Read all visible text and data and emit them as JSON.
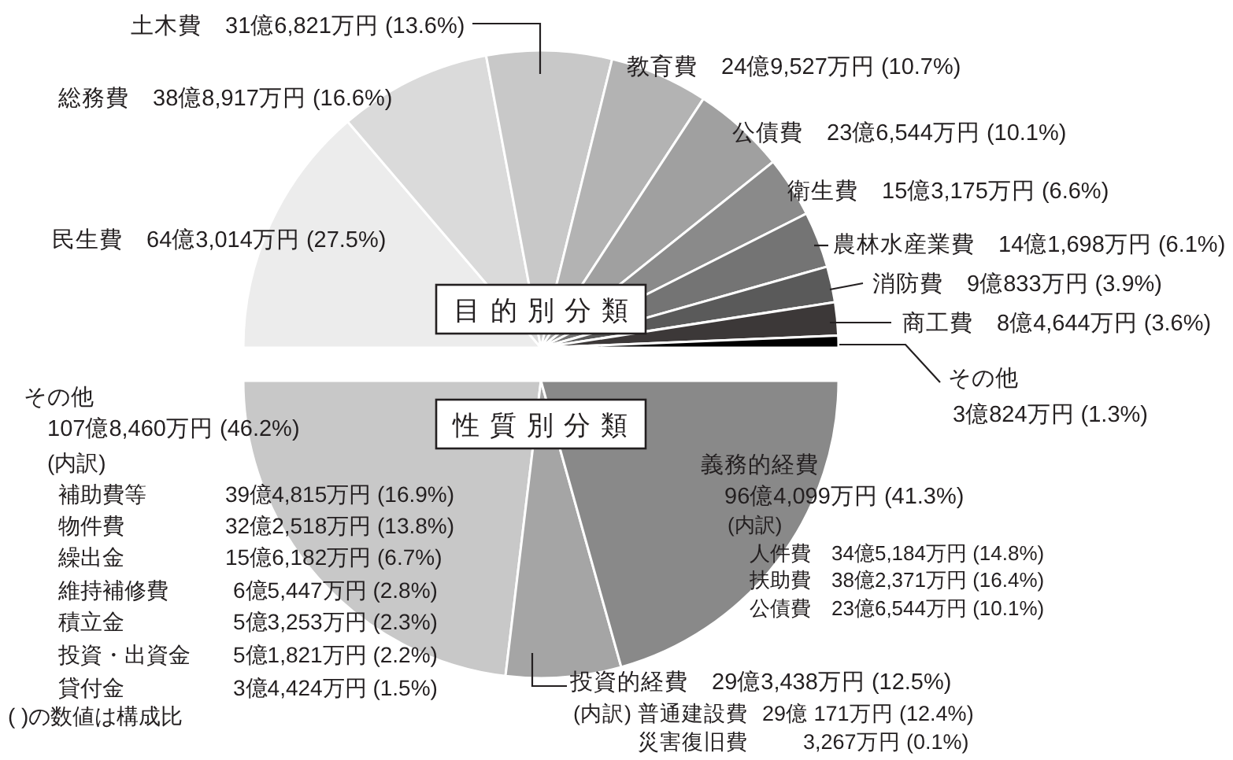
{
  "chart_data": [
    {
      "type": "pie",
      "title": "目的別分類",
      "categories": [
        "民生費",
        "総務費",
        "土木費",
        "教育費",
        "公債費",
        "衛生費",
        "農林水産業費",
        "消防費",
        "商工費",
        "その他"
      ],
      "values": [
        27.5,
        16.6,
        13.6,
        10.7,
        10.1,
        6.6,
        6.1,
        3.9,
        3.6,
        1.3
      ],
      "value_labels": [
        "64億3,014万円 (27.5%)",
        "38億8,917万円 (16.6%)",
        "31億6,821万円 (13.6%)",
        "24億9,527万円 (10.7%)",
        "23億6,544万円 (10.1%)",
        "15億3,175万円 (6.6%)",
        "14億1,698万円 (6.1%)",
        "9億833万円 (3.9%)",
        "8億4,644万円 (3.6%)",
        "3億824万円 (1.3%)"
      ],
      "colors": [
        "#ececec",
        "#dadada",
        "#c8c8c8",
        "#b3b3b3",
        "#a0a0a0",
        "#8a8a8a",
        "#747474",
        "#5a5a5a",
        "#3c3838",
        "#000000"
      ]
    },
    {
      "type": "pie",
      "title": "性質別分類",
      "categories": [
        "その他",
        "投資的経費",
        "義務的経費"
      ],
      "values": [
        46.2,
        12.5,
        41.3
      ],
      "value_labels": [
        "107億8,460万円 (46.2%)",
        "29億3,438万円 (12.5%)",
        "96億4,099万円 (41.3%)"
      ],
      "colors": [
        "#c8c8c8",
        "#a5a5a5",
        "#898989"
      ],
      "annotations": [
        "(内訳)",
        "補助費等",
        "39億4,815万円 (16.9%)",
        "物件費",
        "32億2,518万円 (13.8%)",
        "繰出金",
        "15億6,182万円 (6.7%)",
        "維持補修費",
        "6億5,447万円 (2.8%)",
        "積立金",
        "5億3,253万円 (2.3%)",
        "投資・出資金",
        "5億1,821万円 (2.2%)",
        "貸付金",
        "3億4,424万円 (1.5%)",
        "(内訳)",
        "人件費",
        "34億5,184万円 (14.8%)",
        "扶助費",
        "38億2,371万円 (16.4%)",
        "公債費",
        "23億6,544万円 (10.1%)",
        "(内訳)",
        "普通建設費",
        "29億 171万円 (12.4%)",
        "災害復旧費",
        "3,267万円 (0.1%)",
        "( )の数値は構成比"
      ]
    }
  ]
}
